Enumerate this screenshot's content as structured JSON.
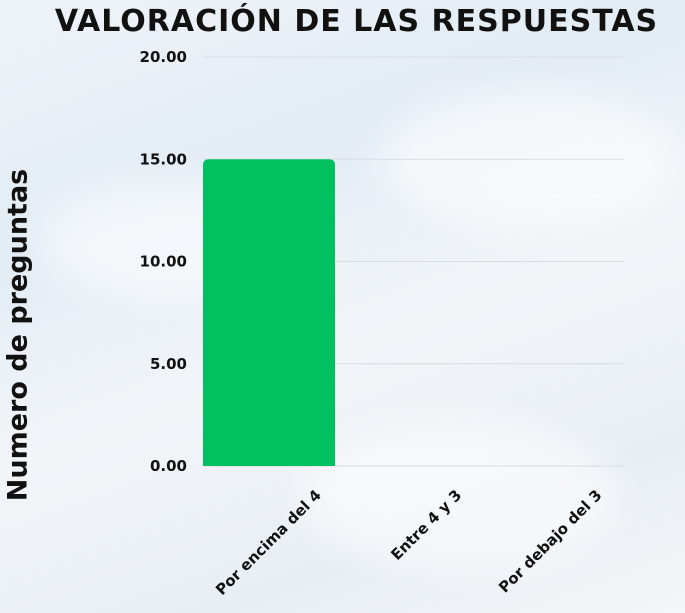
{
  "chart_data": {
    "type": "bar",
    "title": "VALORACIÓN DE LAS RESPUESTAS",
    "ylabel": "Numero de preguntas",
    "xlabel": "",
    "categories": [
      "Por encima del 4",
      "Entre 4 y 3",
      "Por debajo del 3"
    ],
    "values": [
      15,
      0,
      0
    ],
    "ylim": [
      0,
      20
    ],
    "yticks": [
      "0.00",
      "5.00",
      "10.00",
      "15.00",
      "20.00"
    ],
    "bar_color": "#00c060",
    "grid": true,
    "legend": "none"
  }
}
